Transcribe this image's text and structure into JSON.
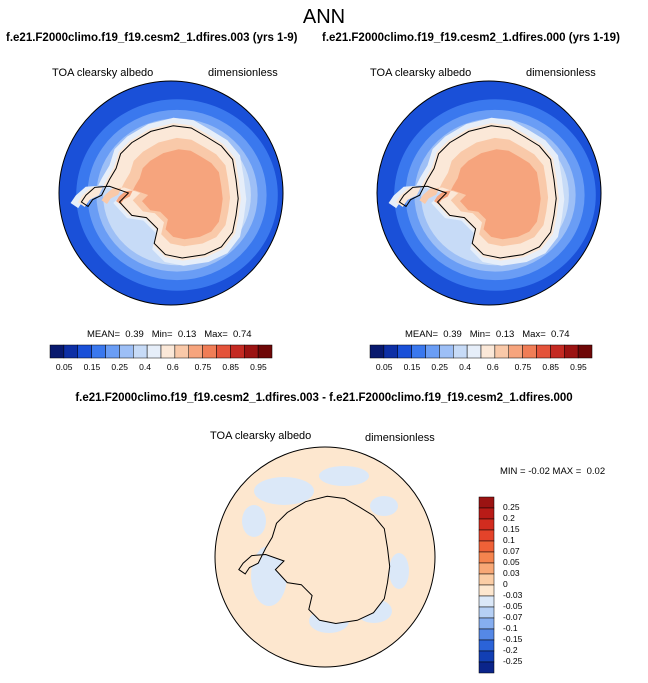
{
  "title": "ANN",
  "panels": [
    {
      "case": "f.e21.F2000climo.f19_f19.cesm2_1.dfires.003 (yrs 1-9)",
      "variable": "TOA clearsky albedo",
      "units": "dimensionless",
      "stats": {
        "mean_label": "MEAN=",
        "mean": "0.39",
        "min_label": "Min=",
        "min": "0.13",
        "max_label": "Max=",
        "max": "0.74"
      }
    },
    {
      "case": "f.e21.F2000climo.f19_f19.cesm2_1.dfires.000 (yrs 1-19)",
      "variable": "TOA clearsky albedo",
      "units": "dimensionless",
      "stats": {
        "mean_label": "MEAN=",
        "mean": "0.39",
        "min_label": "Min=",
        "min": "0.13",
        "max_label": "Max=",
        "max": "0.74"
      }
    }
  ],
  "colorbar": {
    "ticks": [
      "0.05",
      "0.15",
      "0.25",
      "0.4",
      "0.6",
      "0.75",
      "0.85",
      "0.95"
    ],
    "colors": [
      "#08196e",
      "#0d2fa5",
      "#1a50d8",
      "#3a78ee",
      "#6a9df5",
      "#9dbff6",
      "#c7dbf7",
      "#e6eef9",
      "#fbe8d8",
      "#f9c9a9",
      "#f6a47d",
      "#f07d56",
      "#e4533a",
      "#c42a22",
      "#9b1312",
      "#6e0707"
    ]
  },
  "difference": {
    "title": "f.e21.F2000climo.f19_f19.cesm2_1.dfires.003 - f.e21.F2000climo.f19_f19.cesm2_1.dfires.000",
    "variable": "TOA clearsky albedo",
    "units": "dimensionless",
    "stats": {
      "min_label": "MIN =",
      "min": "-0.02",
      "max_label": "MAX =",
      "max": "0.02"
    },
    "colorbar": {
      "ticks": [
        "0.25",
        "0.2",
        "0.15",
        "0.1",
        "0.07",
        "0.05",
        "0.03",
        "0",
        "-0.03",
        "-0.05",
        "-0.07",
        "-0.1",
        "-0.15",
        "-0.2",
        "-0.25"
      ],
      "colors": [
        "#9b1312",
        "#b81b17",
        "#d22c1f",
        "#e4432a",
        "#ef6137",
        "#f5844e",
        "#f8a876",
        "#fbcda5",
        "#fde7cf",
        "#dbe8f8",
        "#b6d0f5",
        "#86aef0",
        "#5588e6",
        "#2b63d8",
        "#123fb4",
        "#0a248a"
      ]
    }
  },
  "colors": {
    "ocean_base": "#1a50d8",
    "land": "#f6a47d",
    "near_zero_pos": "#fde7cf",
    "near_zero_neg": "#dbe8f8"
  }
}
